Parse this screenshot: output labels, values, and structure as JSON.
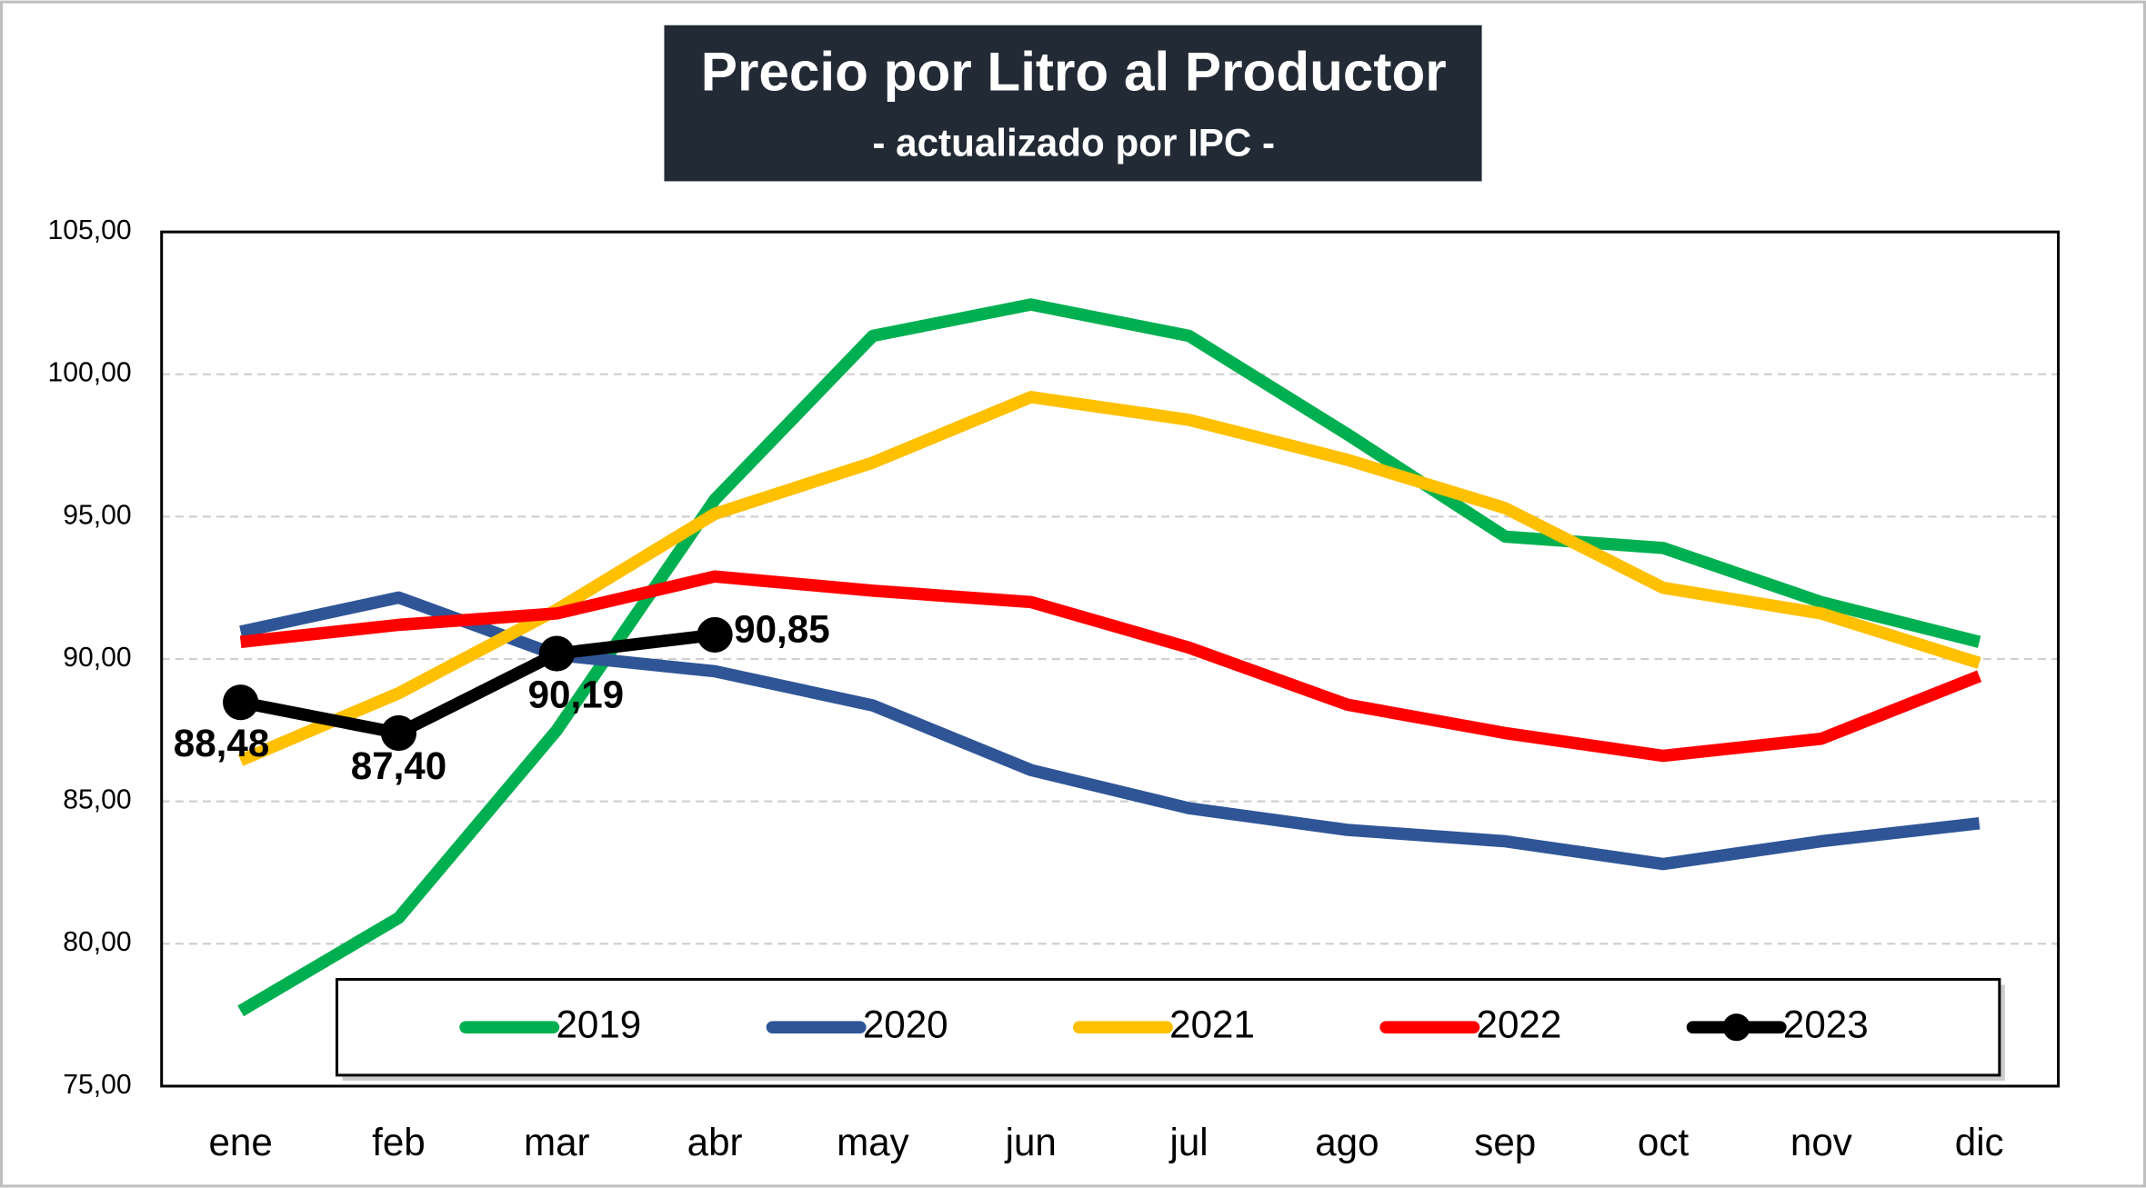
{
  "chart_data": {
    "type": "line",
    "title": "Precio por Litro al Productor",
    "subtitle": "- actualizado por IPC -",
    "categories": [
      "ene",
      "feb",
      "mar",
      "abr",
      "may",
      "jun",
      "jul",
      "ago",
      "sep",
      "oct",
      "nov",
      "dic"
    ],
    "series": [
      {
        "name": "2019",
        "color": "#00b050",
        "values": [
          77.64,
          80.91,
          87.5,
          95.6,
          101.35,
          102.45,
          101.35,
          97.9,
          94.3,
          93.9,
          92.0,
          90.6
        ]
      },
      {
        "name": "2020",
        "color": "#2f5597",
        "values": [
          90.96,
          92.16,
          90.14,
          89.57,
          88.37,
          86.1,
          84.76,
          84.0,
          83.6,
          82.8,
          83.6,
          84.23
        ]
      },
      {
        "name": "2021",
        "color": "#ffc000",
        "values": [
          86.44,
          88.8,
          91.73,
          95.1,
          96.9,
          99.2,
          98.4,
          97.0,
          95.3,
          92.5,
          91.6,
          89.86
        ]
      },
      {
        "name": "2022",
        "color": "#ff0000",
        "values": [
          90.6,
          91.2,
          91.6,
          92.9,
          92.4,
          92.0,
          90.4,
          88.4,
          87.4,
          86.6,
          87.2,
          89.4
        ]
      },
      {
        "name": "2023",
        "color": "#000000",
        "markers": true,
        "values": [
          88.48,
          87.4,
          90.19,
          90.85,
          null,
          null,
          null,
          null,
          null,
          null,
          null,
          null
        ],
        "value_labels": [
          "88,48",
          "87,40",
          "90,19",
          "90,85",
          null,
          null,
          null,
          null,
          null,
          null,
          null,
          null
        ]
      }
    ],
    "ylim": [
      75,
      105
    ],
    "yticks": [
      {
        "value": 75,
        "label": "75,00"
      },
      {
        "value": 80,
        "label": "80,00"
      },
      {
        "value": 85,
        "label": "85,00"
      },
      {
        "value": 90,
        "label": "90,00"
      },
      {
        "value": 95,
        "label": "95,00"
      },
      {
        "value": 100,
        "label": "100,00"
      },
      {
        "value": 105,
        "label": "105,00"
      }
    ],
    "grid": true,
    "legend": "bottom"
  }
}
